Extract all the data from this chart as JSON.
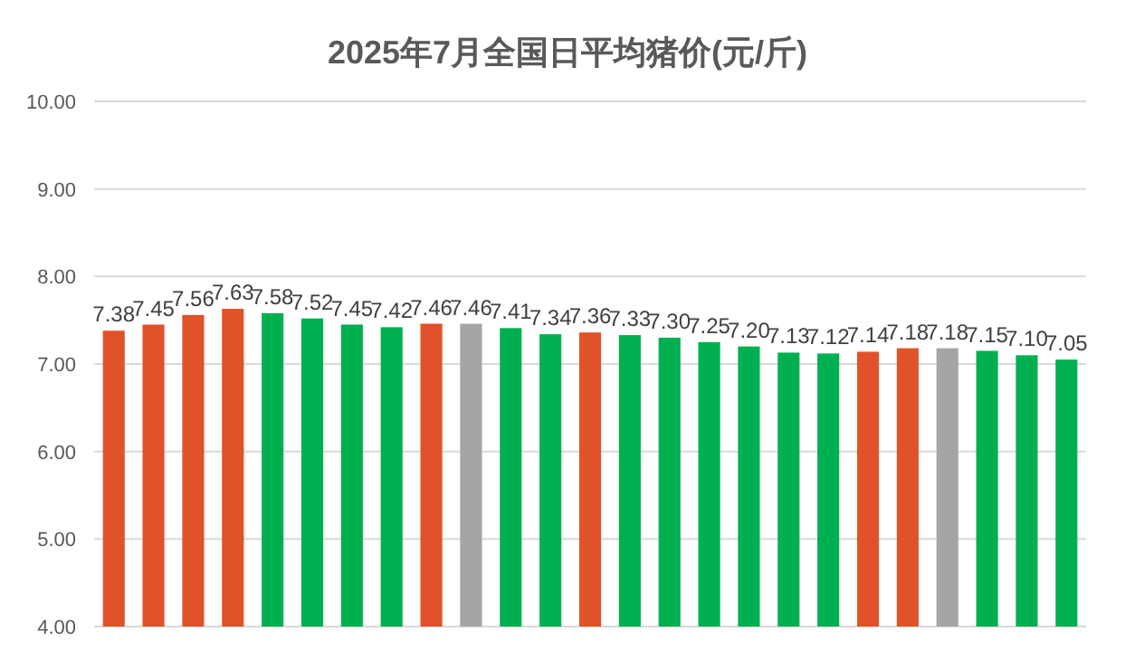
{
  "chart_data": {
    "type": "bar",
    "title": "2025年7月全国日平均猪价(元/斤)",
    "categories": [
      null,
      null,
      null,
      null,
      null,
      null,
      null,
      null,
      null,
      null,
      null,
      null,
      null,
      null,
      null,
      null,
      null,
      null,
      null,
      null,
      null,
      null,
      null,
      null,
      null
    ],
    "values": [
      7.38,
      7.45,
      7.56,
      7.63,
      7.58,
      7.52,
      7.45,
      7.42,
      7.46,
      7.46,
      7.41,
      7.34,
      7.36,
      7.33,
      7.3,
      7.25,
      7.2,
      7.13,
      7.12,
      7.14,
      7.18,
      7.18,
      7.15,
      7.1,
      7.05
    ],
    "value_labels": [
      "7.38",
      "7.45",
      "7.56",
      "7.63",
      "7.58",
      "7.52",
      "7.45",
      "7.42",
      "7.46",
      "7.46",
      "7.41",
      "7.34",
      "7.36",
      "7.33",
      "7.30",
      "7.25",
      "7.20",
      "7.13",
      "7.12",
      "7.14",
      "7.18",
      "7.18",
      "7.15",
      "7.10",
      "7.05"
    ],
    "colors": [
      "#e0522a",
      "#e0522a",
      "#e0522a",
      "#e0522a",
      "#00b050",
      "#00b050",
      "#00b050",
      "#00b050",
      "#e0522a",
      "#a5a5a5",
      "#00b050",
      "#00b050",
      "#e0522a",
      "#00b050",
      "#00b050",
      "#00b050",
      "#00b050",
      "#00b050",
      "#00b050",
      "#e0522a",
      "#e0522a",
      "#a5a5a5",
      "#00b050",
      "#00b050",
      "#00b050"
    ],
    "ylim": [
      4,
      10
    ],
    "yticks": [
      {
        "value": 4,
        "label": "4.00"
      },
      {
        "value": 5,
        "label": "5.00"
      },
      {
        "value": 6,
        "label": "6.00"
      },
      {
        "value": 7,
        "label": "7.00"
      },
      {
        "value": 8,
        "label": "8.00"
      },
      {
        "value": 9,
        "label": "9.00"
      },
      {
        "value": 10,
        "label": "10.00"
      }
    ],
    "grid": "y"
  }
}
